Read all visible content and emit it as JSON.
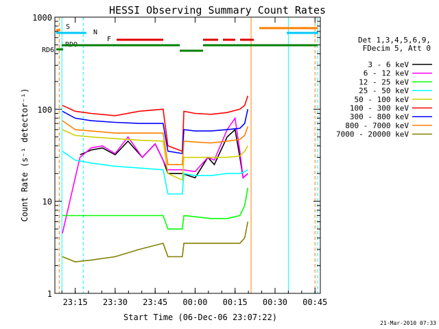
{
  "chart_data": {
    "type": "line",
    "title": "HESSI Observing Summary Count Rates",
    "xlabel": "Start Time (06-Dec-06 23:07:22)",
    "ylabel": "Count Rate (s⁻¹ detector⁻¹)",
    "y_scale": "log",
    "ylim": [
      1,
      1000
    ],
    "xlim": [
      "06-Dec-06 23:07:22",
      "07-Dec-06 00:47:00"
    ],
    "x_ticks": [
      "23:15",
      "23:30",
      "23:45",
      "00:00",
      "00:15",
      "00:30",
      "00:45"
    ],
    "y_ticks": [
      "1",
      "10",
      "100",
      "1000"
    ],
    "legend_header": [
      "Det 1,3,4,5,6,9,",
      "FDecim 5, Att 0"
    ],
    "legend_position": "right",
    "footer_date": "21-Mar-2010 07:33",
    "flags": [
      {
        "label": "S",
        "color": "#ff7f00"
      },
      {
        "label": "N",
        "color": "#00c8ff"
      },
      {
        "label": "F",
        "color": "#e00000"
      },
      {
        "label": "RDO",
        "color": "#000000"
      },
      {
        "label": "RD6",
        "color": "#008000"
      }
    ],
    "vertical_markers": [
      {
        "time": "23:10",
        "color": "#00ffff",
        "style": "solid"
      },
      {
        "time": "23:09",
        "color": "#ff7f00",
        "style": "dashed"
      },
      {
        "time": "23:18",
        "color": "#00ffff",
        "style": "dashed"
      },
      {
        "time": "00:21",
        "color": "#ff7f00",
        "style": "solid"
      },
      {
        "time": "00:35",
        "color": "#00ffff",
        "style": "solid"
      },
      {
        "time": "00:45",
        "color": "#ff7f00",
        "style": "dashed"
      },
      {
        "time": "00:46",
        "color": "#00ffff",
        "style": "dashed"
      }
    ],
    "series": [
      {
        "name": "3 - 6 keV",
        "color": "#000000",
        "x": [
          23.28,
          23.35,
          23.42,
          23.5,
          23.58,
          23.67,
          23.75,
          23.8,
          23.83,
          23.88,
          23.92,
          24.0,
          24.08,
          24.12,
          24.2,
          24.25,
          24.28,
          24.3,
          24.33
        ],
        "y": [
          32,
          36,
          38,
          32,
          45,
          30,
          42,
          28,
          20,
          20,
          20,
          18,
          30,
          25,
          50,
          60,
          30,
          18,
          20
        ]
      },
      {
        "name": "6 - 12 keV",
        "color": "#ff00ff",
        "x": [
          23.17,
          23.28,
          23.35,
          23.42,
          23.5,
          23.58,
          23.67,
          23.75,
          23.8,
          23.83,
          23.88,
          23.92,
          24.0,
          24.08,
          24.12,
          24.2,
          24.25,
          24.28,
          24.3,
          24.33
        ],
        "y": [
          4.5,
          30,
          38,
          40,
          33,
          50,
          30,
          42,
          28,
          22,
          22,
          22,
          21,
          30,
          28,
          60,
          80,
          35,
          18,
          20
        ]
      },
      {
        "name": "12 - 25 keV",
        "color": "#00ff00",
        "x": [
          23.17,
          23.25,
          23.35,
          23.5,
          23.65,
          23.8,
          23.83,
          23.92,
          23.93,
          24.0,
          24.1,
          24.2,
          24.28,
          24.31,
          24.33
        ],
        "y": [
          7,
          7,
          7,
          7,
          7,
          7,
          5,
          5,
          7,
          6.8,
          6.5,
          6.5,
          7,
          9,
          14
        ]
      },
      {
        "name": "25 - 50 keV",
        "color": "#00ffff",
        "x": [
          23.17,
          23.25,
          23.35,
          23.5,
          23.65,
          23.8,
          23.83,
          23.92,
          23.93,
          24.0,
          24.1,
          24.2,
          24.28,
          24.31,
          24.33
        ],
        "y": [
          35,
          28,
          26,
          24,
          23,
          22,
          12,
          12,
          20,
          19,
          19,
          20,
          20,
          21,
          22
        ]
      },
      {
        "name": "50 - 100 keV",
        "color": "#d0d000",
        "x": [
          23.17,
          23.25,
          23.35,
          23.5,
          23.65,
          23.8,
          23.83,
          23.92,
          23.93,
          24.0,
          24.1,
          24.2,
          24.28,
          24.31,
          24.33
        ],
        "y": [
          60,
          52,
          50,
          48,
          46,
          45,
          20,
          17,
          30,
          30,
          30,
          30,
          31,
          35,
          40
        ]
      },
      {
        "name": "100 - 300 keV",
        "color": "#ff0000",
        "x": [
          23.17,
          23.25,
          23.35,
          23.5,
          23.65,
          23.8,
          23.83,
          23.92,
          23.93,
          24.0,
          24.1,
          24.2,
          24.28,
          24.31,
          24.33
        ],
        "y": [
          110,
          95,
          90,
          85,
          95,
          100,
          40,
          35,
          95,
          90,
          88,
          92,
          100,
          110,
          140
        ]
      },
      {
        "name": "300 - 800 keV",
        "color": "#0000ff",
        "x": [
          23.17,
          23.25,
          23.35,
          23.5,
          23.65,
          23.8,
          23.83,
          23.92,
          23.93,
          24.0,
          24.1,
          24.2,
          24.28,
          24.31,
          24.33
        ],
        "y": [
          95,
          80,
          75,
          72,
          70,
          70,
          35,
          33,
          60,
          58,
          58,
          60,
          62,
          70,
          100
        ]
      },
      {
        "name": "800 - 7000 keV",
        "color": "#ff7f00",
        "x": [
          23.17,
          23.25,
          23.35,
          23.5,
          23.65,
          23.8,
          23.83,
          23.92,
          23.93,
          24.0,
          24.1,
          24.2,
          24.28,
          24.31,
          24.33
        ],
        "y": [
          75,
          60,
          58,
          55,
          55,
          55,
          25,
          25,
          45,
          44,
          43,
          45,
          47,
          52,
          65
        ]
      },
      {
        "name": "7000 - 20000 keV",
        "color": "#808000",
        "x": [
          23.17,
          23.25,
          23.35,
          23.5,
          23.65,
          23.8,
          23.83,
          23.92,
          23.93,
          24.0,
          24.1,
          24.2,
          24.28,
          24.31,
          24.33
        ],
        "y": [
          2.5,
          2.2,
          2.3,
          2.5,
          3,
          3.5,
          2.5,
          2.5,
          3.5,
          3.5,
          3.5,
          3.5,
          3.5,
          4,
          6
        ]
      }
    ]
  }
}
